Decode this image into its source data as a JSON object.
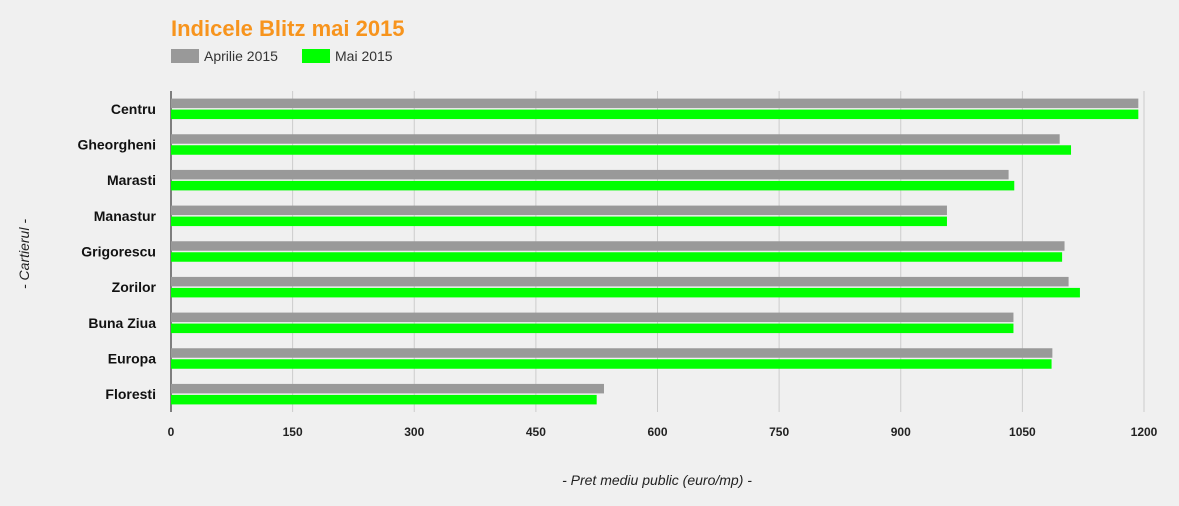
{
  "chart_data": {
    "type": "bar",
    "orientation": "horizontal",
    "title": "Indicele Blitz mai 2015",
    "xlabel": "- Pret mediu public (euro/mp) -",
    "ylabel": "- Cartierul -",
    "xlim": [
      0,
      1200
    ],
    "xticks": [
      0,
      150,
      300,
      450,
      600,
      750,
      900,
      1050,
      1200
    ],
    "grid": true,
    "legend_position": "top-left",
    "categories": [
      "Centru",
      "Gheorgheni",
      "Marasti",
      "Manastur",
      "Grigorescu",
      "Zorilor",
      "Buna Ziua",
      "Europa",
      "Floresti"
    ],
    "series": [
      {
        "name": "Aprilie 2015",
        "color": "#999999",
        "values": [
          1193,
          1096,
          1033,
          957,
          1102,
          1107,
          1039,
          1087,
          534
        ]
      },
      {
        "name": "Mai 2015",
        "color": "#00ff00",
        "values": [
          1193,
          1110,
          1040,
          957,
          1099,
          1121,
          1039,
          1086,
          525
        ]
      }
    ],
    "title_color": "#f7941d"
  }
}
